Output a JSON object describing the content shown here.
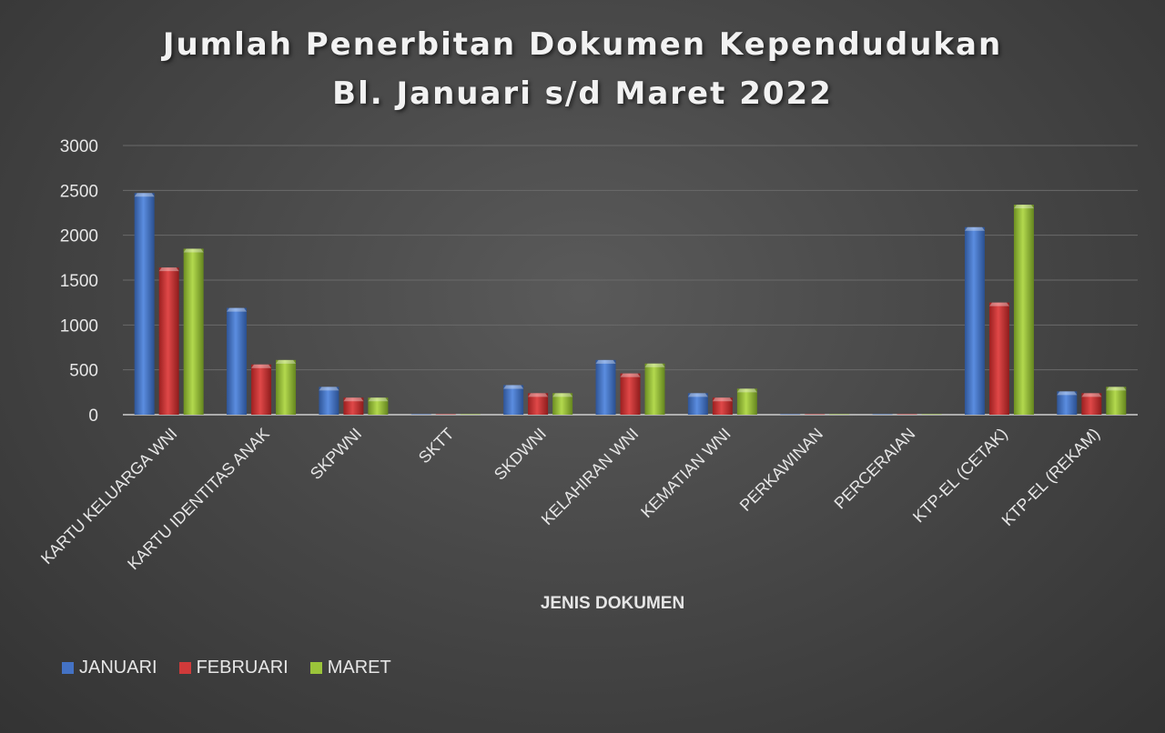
{
  "chart_data": {
    "type": "bar",
    "title_lines": [
      "Jumlah Penerbitan Dokumen Kependudukan",
      "Bl. Januari s/d Maret 2022"
    ],
    "xlabel": "JENIS DOKUMEN",
    "ylabel": "",
    "ylim": [
      0,
      3000
    ],
    "yticks": [
      0,
      500,
      1000,
      1500,
      2000,
      2500,
      3000
    ],
    "grid": true,
    "legend_position": "bottom-left",
    "categories": [
      "KARTU KELUARGA WNI",
      "KARTU IDENTITAS ANAK",
      "SKPWNI",
      "SKTT",
      "SKDWNI",
      "KELAHIRAN WNI",
      "KEMATIAN WNI",
      "PERKAWINAN",
      "PERCERAIAN",
      "KTP-EL (CETAK)",
      "KTP-EL (REKAM)"
    ],
    "series": [
      {
        "name": "JANUARI",
        "color": "#4472c4",
        "values": [
          2470,
          1190,
          310,
          0,
          330,
          610,
          240,
          0,
          0,
          2090,
          260
        ]
      },
      {
        "name": "FEBRUARI",
        "color": "#d03a3a",
        "values": [
          1640,
          560,
          190,
          0,
          240,
          460,
          190,
          0,
          0,
          1250,
          240
        ]
      },
      {
        "name": "MARET",
        "color": "#9bc43a",
        "values": [
          1850,
          610,
          190,
          0,
          240,
          570,
          290,
          0,
          0,
          2340,
          310
        ]
      }
    ]
  }
}
